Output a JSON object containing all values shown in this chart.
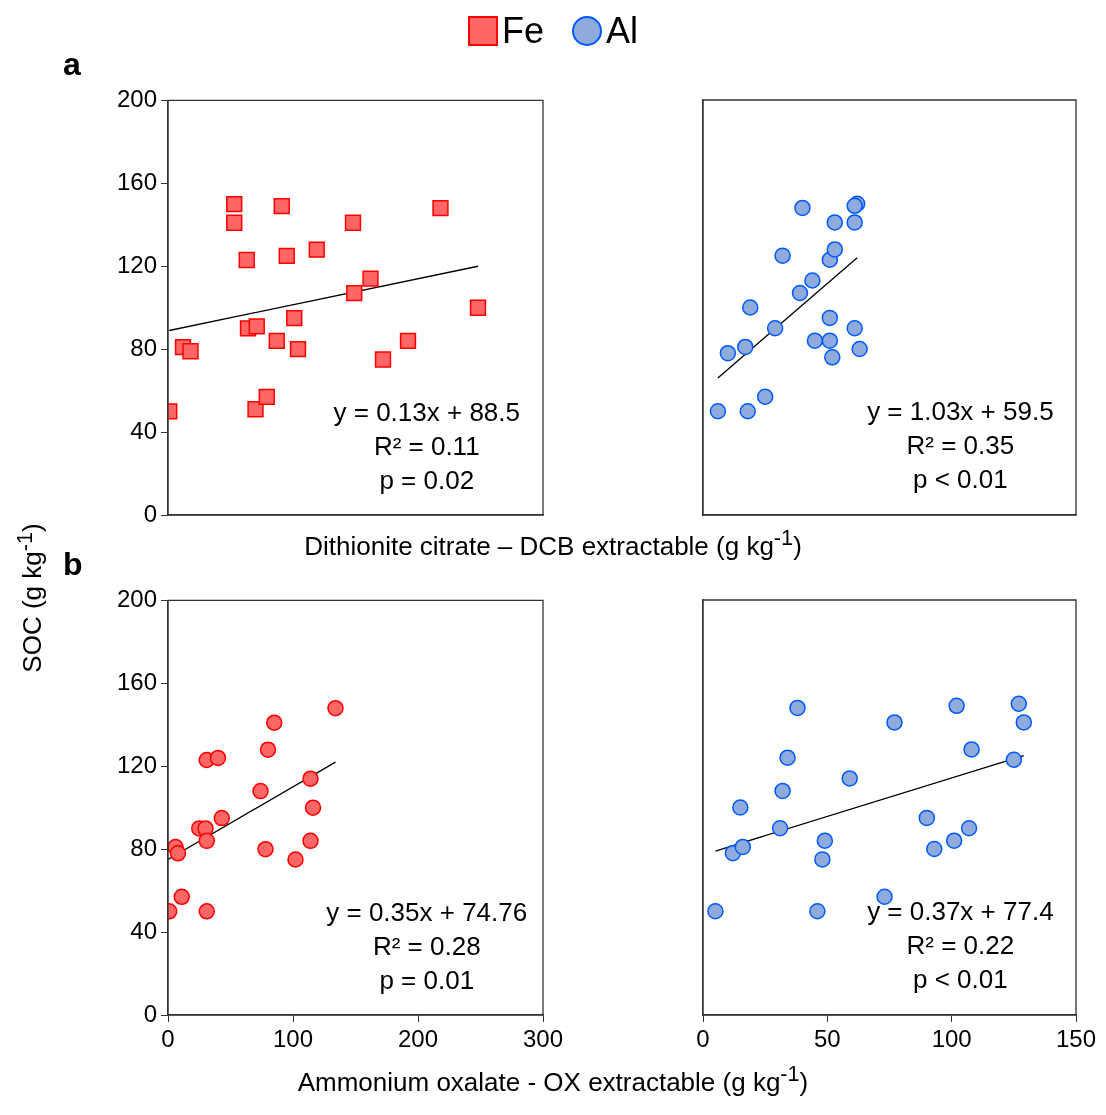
{
  "chart_data": [
    {
      "type": "scatter",
      "title": "a",
      "xlabel": "Dithionite citrate – DCB extractable (g kg$^{-1}$)",
      "ylabel": "SOC (g kg$^{-1}$)",
      "xlim": [
        0,
        300
      ],
      "xticks": [
        0,
        100,
        200,
        300
      ],
      "ylim": [
        0,
        200
      ],
      "yticks": [
        0,
        40,
        80,
        120,
        160,
        200
      ],
      "tick_labels": "y",
      "legend": "top",
      "grid": false,
      "marker": "square",
      "series": [
        {
          "name": "Fe",
          "color": "#ff6666",
          "x": [
            1,
            12,
            18,
            53,
            53,
            63,
            64,
            71,
            70,
            79,
            91,
            95,
            87,
            101,
            104,
            119,
            148,
            149,
            162,
            172,
            192,
            218,
            248
          ],
          "values": [
            50,
            81,
            79,
            150,
            141,
            123,
            90,
            91,
            51,
            57,
            149,
            125,
            84,
            95,
            80,
            128,
            141,
            107,
            114,
            75,
            84,
            148,
            100
          ]
        },
        {
          "type": "line",
          "color": "#000000",
          "marker": "none",
          "x": [
            1,
            248
          ],
          "values": [
            89,
            120
          ]
        }
      ],
      "annotations": [
        "y = 0.13x + 88.5",
        "R² = 0.11",
        "p = 0.02"
      ]
    },
    {
      "type": "scatter",
      "xlim": [
        0,
        150
      ],
      "xticks": [
        0,
        50,
        100,
        150
      ],
      "ylim": [
        0,
        200
      ],
      "yticks": [
        0,
        40,
        80,
        120,
        160,
        200
      ],
      "tick_labels": false,
      "legend": "top",
      "grid": false,
      "marker": "circle",
      "series": [
        {
          "name": "Al",
          "color": "#8faadc",
          "x": [
            6,
            10,
            17,
            19,
            18,
            25,
            29,
            32,
            39,
            40,
            44,
            45,
            51,
            51,
            52,
            51,
            53,
            53,
            61,
            62,
            61,
            61,
            63
          ],
          "values": [
            50,
            78,
            81,
            100,
            50,
            57,
            90,
            125,
            107,
            148,
            113,
            84,
            95,
            84,
            76,
            123,
            128,
            141,
            141,
            150,
            149,
            90,
            80
          ]
        },
        {
          "type": "line",
          "color": "#000000",
          "marker": "none",
          "x": [
            6,
            62
          ],
          "values": [
            66,
            124
          ]
        }
      ],
      "annotations": [
        "y = 1.03x + 59.5",
        "R² = 0.35",
        "p < 0.01"
      ]
    },
    {
      "type": "scatter",
      "title": "b",
      "xlabel": "Ammonium oxalate - OX extractable (g kg$^{-1}$)",
      "xlim": [
        0,
        300
      ],
      "xticks": [
        0,
        100,
        200,
        300
      ],
      "ylim": [
        0,
        200
      ],
      "yticks": [
        0,
        40,
        80,
        120,
        160,
        200
      ],
      "grid": false,
      "marker": "circle",
      "series": [
        {
          "color": "#ff6666",
          "x": [
            1,
            6,
            8,
            11,
            25,
            30,
            31,
            31,
            31,
            40,
            43,
            74,
            80,
            85,
            78,
            102,
            114,
            114,
            116,
            134
          ],
          "values": [
            50,
            81,
            78,
            57,
            90,
            90,
            123,
            84,
            50,
            124,
            95,
            108,
            128,
            141,
            80,
            75,
            114,
            84,
            100,
            148
          ]
        },
        {
          "type": "line",
          "color": "#000000",
          "marker": "none",
          "x": [
            0,
            134
          ],
          "values": [
            75,
            122
          ]
        }
      ],
      "annotations": [
        "y = 0.35x + 74.76",
        "R² = 0.28",
        "p = 0.01"
      ]
    },
    {
      "type": "scatter",
      "xlim": [
        0,
        150
      ],
      "xticks": [
        0,
        50,
        100,
        150
      ],
      "ylim": [
        0,
        200
      ],
      "yticks": [
        0,
        40,
        80,
        120,
        160,
        200
      ],
      "tick_labels": "x",
      "grid": false,
      "marker": "circle",
      "series": [
        {
          "color": "#8faadc",
          "x": [
            5,
            12,
            16,
            15,
            31,
            32,
            34,
            38,
            46,
            48,
            49,
            59,
            73,
            77,
            90,
            93,
            101,
            102,
            107,
            108,
            125,
            127,
            129
          ],
          "values": [
            50,
            78,
            81,
            100,
            90,
            108,
            124,
            148,
            50,
            75,
            84,
            114,
            57,
            141,
            95,
            80,
            84,
            149,
            90,
            128,
            123,
            150,
            141
          ]
        },
        {
          "type": "line",
          "color": "#000000",
          "marker": "none",
          "x": [
            5,
            129
          ],
          "values": [
            79,
            125
          ]
        }
      ],
      "annotations": [
        "y = 0.37x + 77.4",
        "R² = 0.22",
        "p < 0.01"
      ]
    }
  ]
}
